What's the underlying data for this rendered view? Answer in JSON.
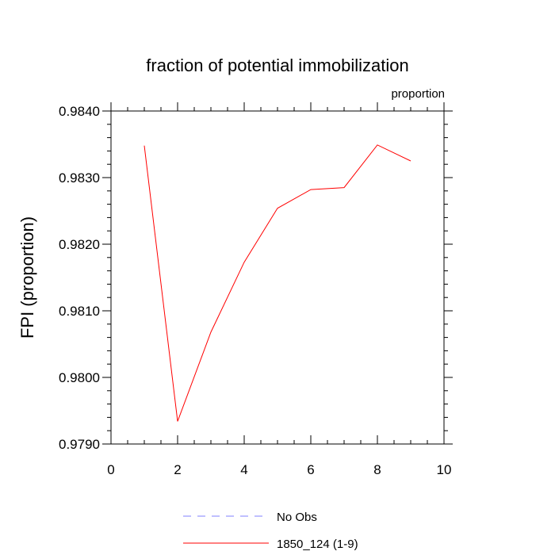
{
  "chart_data": {
    "type": "line",
    "title": "fraction of potential immobilization",
    "units": "proportion",
    "xlabel": "",
    "ylabel": "FPI  (proportion)",
    "xlim": [
      0,
      10
    ],
    "ylim": [
      0.979,
      0.984
    ],
    "x_ticks": [
      "0",
      "2",
      "4",
      "6",
      "8",
      "10"
    ],
    "y_ticks": [
      "0.9790",
      "0.9800",
      "0.9810",
      "0.9820",
      "0.9830",
      "0.9840"
    ],
    "grid": false,
    "series": [
      {
        "name": "1850_124 (1-9)",
        "color": "#ff0000",
        "style": "solid",
        "x": [
          1,
          2,
          3,
          4,
          5,
          6,
          7,
          8,
          9
        ],
        "y": [
          0.98348,
          0.97934,
          0.98068,
          0.98173,
          0.98254,
          0.98282,
          0.98285,
          0.98349,
          0.98325
        ]
      }
    ],
    "legend": [
      {
        "label": "No Obs",
        "color": "#8080ff",
        "style": "dashed"
      },
      {
        "label": "1850_124 (1-9)",
        "color": "#ff0000",
        "style": "solid"
      }
    ]
  }
}
